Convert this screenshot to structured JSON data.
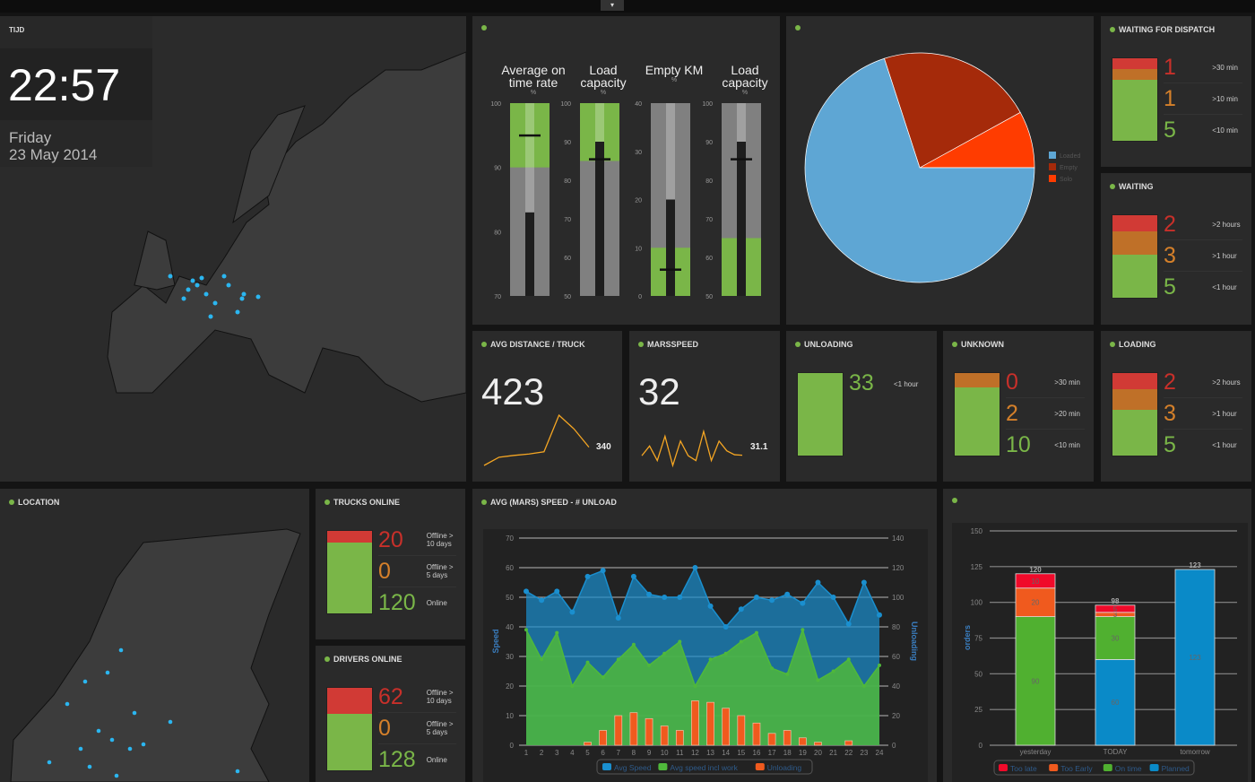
{
  "topbar": {
    "toggle_icon": "chevron-down-icon",
    "toggle": "▾"
  },
  "clock": {
    "title": "TIJD",
    "time": "22:57",
    "day": "Friday",
    "date": "23 May 2014"
  },
  "bullets": [
    {
      "title": "Average on",
      "title2": "time rate",
      "unit": "%",
      "min": 70,
      "max": 100,
      "ticks": [
        70,
        80,
        90,
        100
      ],
      "good_from": 90,
      "good_to": 100,
      "value": 83,
      "target": 95
    },
    {
      "title": "Load",
      "title2": "capacity",
      "unit": "%",
      "min": 50,
      "max": 100,
      "ticks": [
        50,
        60,
        70,
        80,
        90,
        100
      ],
      "good_from": 85,
      "good_to": 100,
      "value": 90,
      "target": 85.5
    },
    {
      "title": "Empty KM",
      "title2": "",
      "unit": "%",
      "min": 0,
      "max": 40,
      "ticks": [
        0,
        10,
        20,
        30,
        40
      ],
      "good_from": 0,
      "good_to": 10,
      "value": 20,
      "target": 5.5
    },
    {
      "title": "Load",
      "title2": "capacity",
      "unit": "%",
      "min": 50,
      "max": 100,
      "ticks": [
        50,
        60,
        70,
        80,
        90,
        100
      ],
      "good_from": 50,
      "good_to": 65,
      "value": 90,
      "target": 85.5
    }
  ],
  "pie": {
    "slices": [
      {
        "name": "Loaded",
        "value": 70,
        "color": "#5ea6d4"
      },
      {
        "name": "Empty",
        "value": 22,
        "color": "#a52a0a"
      },
      {
        "name": "Solo",
        "value": 8,
        "color": "#ff3c00"
      }
    ]
  },
  "status_panels": [
    {
      "id": "dispatch",
      "title": "WAITING FOR DISPATCH",
      "rows": [
        {
          "n": "1",
          "l": ">30 min"
        },
        {
          "n": "1",
          "l": ">10 min"
        },
        {
          "n": "5",
          "l": "<10 min"
        }
      ]
    },
    {
      "id": "waiting",
      "title": "WAITING",
      "rows": [
        {
          "n": "2",
          "l": ">2 hours"
        },
        {
          "n": "3",
          "l": ">1 hour"
        },
        {
          "n": "5",
          "l": "<1 hour"
        }
      ]
    },
    {
      "id": "unknown",
      "title": "UNKNOWN",
      "rows": [
        {
          "n": "0",
          "l": ">30 min"
        },
        {
          "n": "2",
          "l": ">20 min"
        },
        {
          "n": "10",
          "l": "<10 min"
        }
      ]
    },
    {
      "id": "loading",
      "title": "LOADING",
      "rows": [
        {
          "n": "2",
          "l": ">2 hours"
        },
        {
          "n": "3",
          "l": ">1 hour"
        },
        {
          "n": "5",
          "l": "<1 hour"
        }
      ]
    },
    {
      "id": "trucks",
      "title": "TRUCKS ONLINE",
      "rows": [
        {
          "n": "20",
          "l": "Offline > 10 days"
        },
        {
          "n": "0",
          "l": "Offline > 5 days"
        },
        {
          "n": "120",
          "l": "Online"
        }
      ]
    },
    {
      "id": "drivers",
      "title": "DRIVERS ONLINE",
      "rows": [
        {
          "n": "62",
          "l": "Offline > 10 days"
        },
        {
          "n": "0",
          "l": "Offline > 5 days"
        },
        {
          "n": "128",
          "l": "Online"
        }
      ]
    }
  ],
  "unloading": {
    "title": "UNLOADING",
    "value": "33",
    "label": "<1 hour"
  },
  "avg_distance": {
    "title": "AVG DISTANCE / TRUCK",
    "value": "423",
    "last": "340",
    "spark": [
      300,
      318,
      322,
      325,
      330,
      410,
      380,
      340
    ]
  },
  "marsspeed": {
    "title": "MARSSPEED",
    "value": "32",
    "last": "31.1",
    "spark": [
      31,
      33,
      30,
      35,
      29,
      34,
      31,
      30,
      36,
      30,
      34,
      32,
      31.2,
      31.1
    ]
  },
  "location": {
    "title": "LOCATION"
  },
  "chart_data": [
    {
      "type": "area",
      "title": "AVG (MARS) SPEED - # UNLOAD",
      "x": [
        1,
        2,
        3,
        4,
        5,
        6,
        7,
        8,
        9,
        10,
        11,
        12,
        13,
        14,
        15,
        16,
        17,
        18,
        19,
        20,
        21,
        22,
        23,
        24
      ],
      "ylabel": "Speed",
      "y2label": "Unloading",
      "ylim": [
        0,
        70
      ],
      "y2lim": [
        0,
        140
      ],
      "yticks": [
        0,
        10,
        20,
        30,
        40,
        50,
        60,
        70
      ],
      "y2ticks": [
        0,
        20,
        40,
        60,
        80,
        100,
        120,
        140
      ],
      "grid": true,
      "legend": "bottom",
      "series": [
        {
          "name": "Avg Speed",
          "type": "area",
          "axis": "left",
          "color": "#1a8fcf",
          "values": [
            52,
            49,
            52,
            45,
            57,
            59,
            43,
            57,
            51,
            50,
            50,
            60,
            47,
            40,
            46,
            50,
            49,
            51,
            48,
            55,
            50,
            41,
            55,
            44
          ]
        },
        {
          "name": "Avg speed incl work",
          "type": "area",
          "axis": "left",
          "color": "#4fb83b",
          "values": [
            39,
            29,
            38,
            20,
            28,
            23,
            29,
            34,
            27,
            31,
            35,
            20,
            29,
            31,
            35,
            38,
            26,
            24,
            39,
            22,
            25,
            29,
            20,
            27
          ]
        },
        {
          "name": "Unloading",
          "type": "bar",
          "axis": "right",
          "color": "#f05a1e",
          "values": [
            0,
            0,
            0,
            0,
            2,
            10,
            20,
            22,
            18,
            13,
            10,
            30,
            29,
            25,
            20,
            15,
            8,
            10,
            5,
            2,
            0,
            3,
            0,
            0
          ]
        }
      ]
    },
    {
      "type": "bar",
      "stacked": true,
      "categories": [
        "yesterday",
        "TODAY",
        "tomorrow"
      ],
      "ylabel": "orders",
      "ylim": [
        0,
        150
      ],
      "yticks": [
        0,
        25,
        50,
        75,
        100,
        125,
        150
      ],
      "grid": true,
      "legend": "bottom",
      "totals": [
        120,
        98,
        123
      ],
      "series": [
        {
          "name": "Planned",
          "color": "#0a8ac8",
          "values": [
            0,
            60,
            123
          ]
        },
        {
          "name": "On time",
          "color": "#50b030",
          "values": [
            90,
            30,
            0
          ]
        },
        {
          "name": "Too Early",
          "color": "#f05a1e",
          "values": [
            20,
            3,
            0
          ]
        },
        {
          "name": "Too late",
          "color": "#f00a2a",
          "values": [
            10,
            5,
            0
          ]
        }
      ]
    }
  ]
}
